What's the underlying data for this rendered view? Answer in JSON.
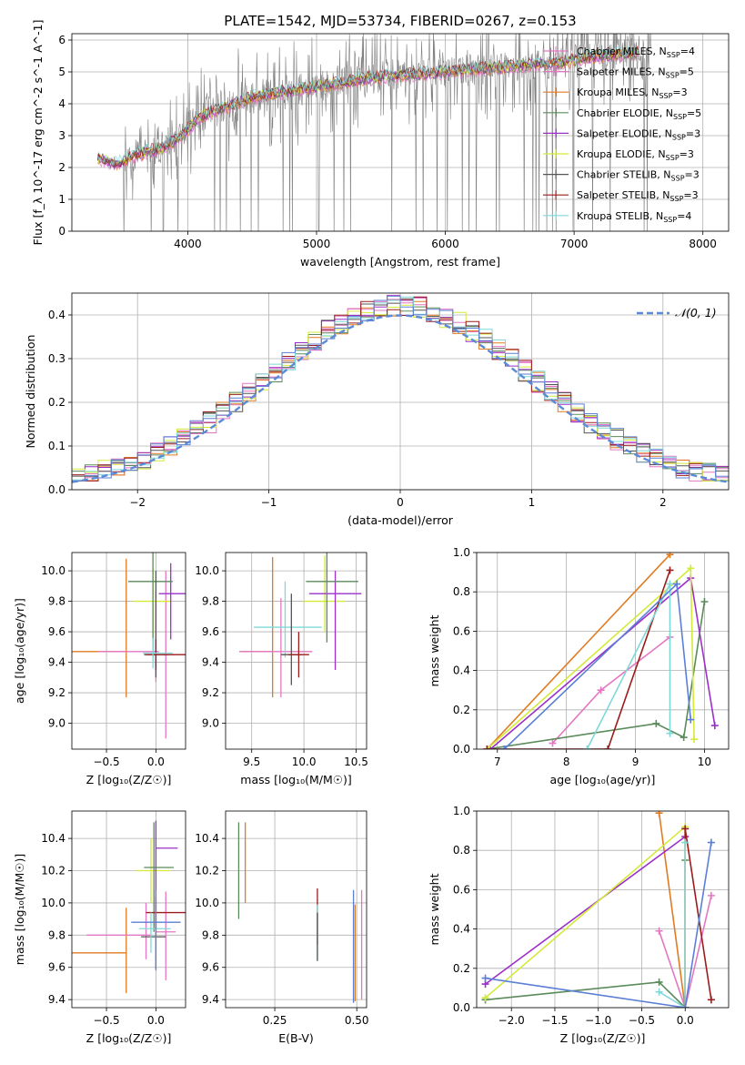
{
  "title": "PLATE=1542, MJD=53734, FIBERID=0267, z=0.153",
  "colors": {
    "Chabrier MILES": "#e377c2",
    "Salpeter MILES": "#e377c2",
    "Kroupa MILES": "#e07b21",
    "Chabrier ELODIE": "#5b8a5b",
    "Salpeter ELODIE": "#9b30c8",
    "Kroupa ELODIE": "#d4ea38",
    "Chabrier STELIB": "#555555",
    "Salpeter STELIB": "#9b1c1c",
    "Kroupa STELIB": "#7fd8d8",
    "observed": "#808080",
    "blue": "#5b7fd6",
    "gauss": "#5b8ad6"
  },
  "chart_data": [
    {
      "id": "spectrum",
      "type": "line",
      "xlabel": "wavelength [Angstrom, rest frame]",
      "ylabel": "Flux [f_λ 10^-17 erg cm^-2 s^-1 A^-1]",
      "xlim": [
        3100,
        8200
      ],
      "ylim": [
        0,
        6.2
      ],
      "xticks": [
        4000,
        5000,
        6000,
        7000,
        8000
      ],
      "yticks": [
        0,
        1,
        2,
        3,
        4,
        5,
        6
      ],
      "legend": [
        "Chabrier MILES, N_SSP=4",
        "Salpeter MILES, N_SSP=5",
        "Kroupa MILES, N_SSP=3",
        "Chabrier ELODIE, N_SSP=5",
        "Salpeter ELODIE, N_SSP=3",
        "Kroupa ELODIE, N_SSP=3",
        "Chabrier STELIB, N_SSP=3",
        "Salpeter STELIB, N_SSP=3",
        "Kroupa STELIB, N_SSP=4"
      ],
      "legend_loc": "right",
      "model_continuum": {
        "x": [
          3300,
          3450,
          3600,
          3800,
          3950,
          4100,
          4300,
          4500,
          4800,
          5100,
          5400,
          5700,
          6000,
          6300,
          6600,
          6900,
          7200,
          7500
        ],
        "y": [
          2.3,
          2.1,
          2.4,
          2.6,
          3.0,
          3.6,
          3.9,
          4.2,
          4.4,
          4.6,
          4.8,
          4.9,
          5.0,
          5.1,
          5.2,
          5.3,
          5.5,
          5.6
        ]
      }
    },
    {
      "id": "residuals",
      "type": "line",
      "xlabel": "(data-model)/error",
      "ylabel": "Normed distribution",
      "xlim": [
        -2.5,
        2.5
      ],
      "ylim": [
        0,
        0.45
      ],
      "xticks": [
        -2,
        -1,
        0,
        1,
        2
      ],
      "yticks": [
        0.0,
        0.1,
        0.2,
        0.3,
        0.4
      ],
      "legend": [
        "𝒩(0, 1)"
      ],
      "legend_loc": "upper right"
    },
    {
      "id": "Z_age",
      "type": "scatter",
      "xlabel": "Z [log₁₀(Z/Z☉)]",
      "ylabel": "age  [log₁₀(age/yr)]",
      "xlim": [
        -0.85,
        0.3
      ],
      "ylim": [
        8.83,
        10.12
      ],
      "xticks": [
        -0.5,
        0.0
      ],
      "yticks": [
        9.0,
        9.2,
        9.4,
        9.6,
        9.8,
        10.0
      ],
      "points": [
        {
          "model": "Kroupa MILES",
          "x": -0.3,
          "xerr": [
            0.57,
            0.0
          ],
          "y": 9.47,
          "yerr": [
            0.3,
            0.61
          ]
        },
        {
          "model": "Salpeter MILES",
          "x": 0.0,
          "xerr": [
            0.58,
            0.03
          ],
          "y": 9.47,
          "yerr": [
            0.2,
            0.4
          ]
        },
        {
          "model": "Chabrier MILES",
          "x": 0.1,
          "xerr": [
            0.12,
            0.1
          ],
          "y": 9.45,
          "yerr": [
            0.55,
            0.55
          ]
        },
        {
          "model": "Kroupa ELODIE",
          "x": -0.03,
          "xerr": [
            0.2,
            0.18
          ],
          "y": 9.8,
          "yerr": [
            0.3,
            0.22
          ]
        },
        {
          "model": "Salpeter ELODIE",
          "x": 0.15,
          "xerr": [
            0.12,
            0.15
          ],
          "y": 9.85,
          "yerr": [
            0.3,
            0.2
          ]
        },
        {
          "model": "Chabrier ELODIE",
          "x": -0.03,
          "xerr": [
            0.25,
            0.2
          ],
          "y": 9.93,
          "yerr": [
            0.5,
            0.2
          ]
        },
        {
          "model": "Chabrier STELIB",
          "x": 0.0,
          "xerr": [
            0.12,
            0.12
          ],
          "y": 9.45,
          "yerr": [
            0.15,
            0.55
          ]
        },
        {
          "model": "Salpeter STELIB",
          "x": 0.0,
          "xerr": [
            0.1,
            0.3
          ],
          "y": 9.45,
          "yerr": [
            0.1,
            0.1
          ]
        },
        {
          "model": "Kroupa STELIB",
          "x": -0.03,
          "xerr": [
            0.1,
            0.2
          ],
          "y": 9.46,
          "yerr": [
            0.1,
            0.1
          ]
        }
      ]
    },
    {
      "id": "mass_age",
      "type": "scatter",
      "xlabel": "mass [log₁₀(M/M☉)]",
      "ylabel": "",
      "xlim": [
        9.25,
        10.6
      ],
      "ylim": [
        8.83,
        10.12
      ],
      "xticks": [
        9.5,
        10.0,
        10.5
      ],
      "yticks": [
        9.0,
        9.2,
        9.4,
        9.6,
        9.8,
        10.0
      ],
      "points": [
        {
          "model": "Kroupa MILES",
          "x": 9.7,
          "xerr": [
            0.3,
            0.0
          ],
          "y": 9.47,
          "yerr": [
            0.3,
            0.62
          ]
        },
        {
          "model": "Salpeter MILES",
          "x": 9.78,
          "xerr": [
            0.4,
            0.3
          ],
          "y": 9.47,
          "yerr": [
            0.3,
            0.35
          ]
        },
        {
          "model": "Kroupa STELIB",
          "x": 9.82,
          "xerr": [
            0.3,
            0.35
          ],
          "y": 9.63,
          "yerr": [
            0.2,
            0.3
          ]
        },
        {
          "model": "Kroupa ELODIE",
          "x": 10.2,
          "xerr": [
            0.2,
            0.2
          ],
          "y": 9.8,
          "yerr": [
            0.2,
            0.3
          ]
        },
        {
          "model": "Salpeter ELODIE",
          "x": 10.3,
          "xerr": [
            0.25,
            0.25
          ],
          "y": 9.85,
          "yerr": [
            0.5,
            0.15
          ]
        },
        {
          "model": "Chabrier ELODIE",
          "x": 10.22,
          "xerr": [
            0.2,
            0.3
          ],
          "y": 9.93,
          "yerr": [
            0.4,
            0.2
          ]
        },
        {
          "model": "Chabrier STELIB",
          "x": 9.88,
          "xerr": [
            0.1,
            0.1
          ],
          "y": 9.45,
          "yerr": [
            0.2,
            0.4
          ]
        },
        {
          "model": "Salpeter STELIB",
          "x": 9.95,
          "xerr": [
            0.1,
            0.1
          ],
          "y": 9.45,
          "yerr": [
            0.15,
            0.15
          ]
        }
      ]
    },
    {
      "id": "age_weight",
      "type": "line",
      "xlabel": "age  [log₁₀(age/yr)]",
      "ylabel": "mass weight",
      "xlim": [
        6.7,
        10.35
      ],
      "ylim": [
        0,
        1.0
      ],
      "xticks": [
        7,
        8,
        9,
        10
      ],
      "yticks": [
        0.0,
        0.2,
        0.4,
        0.6,
        0.8,
        1.0
      ],
      "series": [
        {
          "model": "Kroupa MILES",
          "x": [
            6.85,
            9.5
          ],
          "y": [
            0.0,
            0.99
          ]
        },
        {
          "model": "Chabrier MILES",
          "x": [
            7.8,
            8.5,
            9.5
          ],
          "y": [
            0.03,
            0.3,
            0.57
          ]
        },
        {
          "model": "Chabrier ELODIE",
          "x": [
            6.85,
            9.3,
            9.7,
            10.0
          ],
          "y": [
            0.0,
            0.13,
            0.06,
            0.75
          ]
        },
        {
          "model": "Salpeter ELODIE",
          "x": [
            6.9,
            9.8,
            10.15
          ],
          "y": [
            0.0,
            0.87,
            0.12
          ]
        },
        {
          "model": "Kroupa ELODIE",
          "x": [
            6.85,
            9.8,
            9.85
          ],
          "y": [
            0.0,
            0.92,
            0.05
          ]
        },
        {
          "model": "Salpeter STELIB",
          "x": [
            6.85,
            8.6,
            9.5
          ],
          "y": [
            0.0,
            0.0,
            0.91
          ]
        },
        {
          "model": "Kroupa STELIB",
          "x": [
            8.3,
            9.5,
            9.5
          ],
          "y": [
            0.0,
            0.84,
            0.08
          ]
        },
        {
          "model": "blue",
          "x": [
            7.1,
            9.6,
            9.8
          ],
          "y": [
            0.0,
            0.84,
            0.15
          ]
        }
      ]
    },
    {
      "id": "Z_mass",
      "type": "scatter",
      "xlabel": "Z [log₁₀(Z/Z☉)]",
      "ylabel": "mass [log₁₀(M/M☉)]",
      "xlim": [
        -0.85,
        0.3
      ],
      "ylim": [
        9.35,
        10.57
      ],
      "xticks": [
        -0.5,
        0.0
      ],
      "yticks": [
        9.4,
        9.6,
        9.8,
        10.0,
        10.2,
        10.4
      ],
      "points": [
        {
          "model": "Kroupa MILES",
          "x": -0.3,
          "xerr": [
            0.55,
            0.0
          ],
          "y": 9.69,
          "yerr": [
            0.25,
            0.28
          ]
        },
        {
          "model": "Salpeter MILES",
          "x": -0.1,
          "xerr": [
            0.6,
            0.05
          ],
          "y": 9.8,
          "yerr": [
            0.15,
            0.2
          ]
        },
        {
          "model": "Chabrier MILES",
          "x": 0.1,
          "xerr": [
            0.1,
            0.1
          ],
          "y": 9.82,
          "yerr": [
            0.3,
            0.25
          ]
        },
        {
          "model": "Kroupa ELODIE",
          "x": -0.05,
          "xerr": [
            0.15,
            0.2
          ],
          "y": 10.2,
          "yerr": [
            0.2,
            0.2
          ]
        },
        {
          "model": "Salpeter ELODIE",
          "x": 0.0,
          "xerr": [
            0.0,
            0.22
          ],
          "y": 10.34,
          "yerr": [
            0.5,
            0.17
          ]
        },
        {
          "model": "Chabrier ELODIE",
          "x": -0.02,
          "xerr": [
            0.1,
            0.2
          ],
          "y": 10.22,
          "yerr": [
            0.4,
            0.28
          ]
        },
        {
          "model": "Chabrier STELIB",
          "x": 0.0,
          "xerr": [
            0.15,
            0.1
          ],
          "y": 9.79,
          "yerr": [
            0.2,
            0.2
          ]
        },
        {
          "model": "Salpeter STELIB",
          "x": 0.0,
          "xerr": [
            0.1,
            0.3
          ],
          "y": 9.94,
          "yerr": [
            0.1,
            0.1
          ]
        },
        {
          "model": "Kroupa STELIB",
          "x": -0.05,
          "xerr": [
            0.12,
            0.2
          ],
          "y": 9.84,
          "yerr": [
            0.15,
            0.1
          ]
        },
        {
          "model": "blue",
          "x": 0.0,
          "xerr": [
            0.25,
            0.25
          ],
          "y": 9.88,
          "yerr": [
            0.3,
            0.2
          ]
        }
      ]
    },
    {
      "id": "EBV_mass",
      "type": "scatter",
      "xlabel": "E(B-V)",
      "ylabel": "",
      "xlim": [
        0.1,
        0.53
      ],
      "ylim": [
        9.35,
        10.57
      ],
      "xticks": [
        0.25,
        0.5
      ],
      "yticks": [
        9.4,
        9.6,
        9.8,
        10.0,
        10.2,
        10.4
      ],
      "points": [
        {
          "model": "Chabrier ELODIE",
          "x": 0.14,
          "y": 10.2,
          "yerr": [
            0.3,
            0.3
          ]
        },
        {
          "model": "Kroupa MILES",
          "x": 0.16,
          "y": 10.2,
          "yerr": [
            0.2,
            0.3
          ]
        },
        {
          "model": "Salpeter STELIB",
          "x": 0.38,
          "y": 9.94,
          "yerr": [
            0.2,
            0.15
          ]
        },
        {
          "model": "Kroupa STELIB",
          "x": 0.38,
          "y": 9.84,
          "yerr": [
            0.2,
            0.15
          ]
        },
        {
          "model": "Chabrier STELIB",
          "x": 0.38,
          "y": 9.79,
          "yerr": [
            0.15,
            0.15
          ]
        },
        {
          "model": "blue",
          "x": 0.49,
          "y": 9.88,
          "yerr": [
            0.5,
            0.2
          ]
        },
        {
          "model": "Kroupa MILES",
          "x": 0.495,
          "y": 9.69,
          "yerr": [
            0.3,
            0.3
          ]
        },
        {
          "model": "Chabrier MILES",
          "x": 0.515,
          "y": 9.75,
          "yerr": [
            0.35,
            0.33
          ]
        }
      ]
    },
    {
      "id": "Z_weight",
      "type": "line",
      "xlabel": "Z [log₁₀(Z/Z☉)]",
      "ylabel": "mass weight",
      "xlim": [
        -2.4,
        0.5
      ],
      "ylim": [
        0,
        1.0
      ],
      "xticks": [
        -2.0,
        -1.5,
        -1.0,
        -0.5,
        0.0
      ],
      "yticks": [
        0.0,
        0.2,
        0.4,
        0.6,
        0.8,
        1.0
      ],
      "series": [
        {
          "model": "Kroupa MILES",
          "x": [
            -0.3,
            0.0
          ],
          "y": [
            0.99,
            0.0
          ]
        },
        {
          "model": "Chabrier MILES",
          "x": [
            -0.3,
            0.0,
            0.3
          ],
          "y": [
            0.39,
            0.0,
            0.57
          ]
        },
        {
          "model": "Chabrier ELODIE",
          "x": [
            -2.3,
            -0.3,
            0.0,
            0.0
          ],
          "y": [
            0.04,
            0.13,
            0.0,
            0.75
          ]
        },
        {
          "model": "Salpeter ELODIE",
          "x": [
            -2.3,
            0.0
          ],
          "y": [
            0.12,
            0.87
          ]
        },
        {
          "model": "Kroupa ELODIE",
          "x": [
            -2.3,
            0.0,
            0.0
          ],
          "y": [
            0.05,
            0.92,
            0.0
          ]
        },
        {
          "model": "Salpeter STELIB",
          "x": [
            0.0,
            0.0,
            0.3
          ],
          "y": [
            0.0,
            0.91,
            0.04
          ]
        },
        {
          "model": "Kroupa STELIB",
          "x": [
            -0.3,
            0.0,
            0.0
          ],
          "y": [
            0.08,
            0.0,
            0.84
          ]
        },
        {
          "model": "blue",
          "x": [
            -2.3,
            0.0,
            0.3
          ],
          "y": [
            0.15,
            0.0,
            0.84
          ]
        }
      ]
    }
  ]
}
